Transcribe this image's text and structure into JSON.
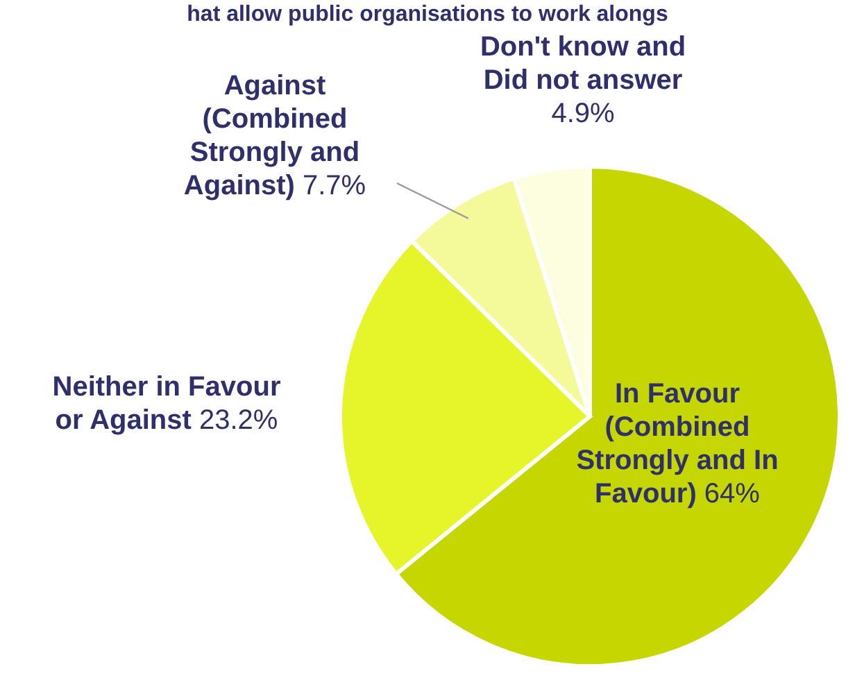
{
  "chart_data": {
    "type": "pie",
    "title": "hat allow public organisations to work alongs",
    "categories": [
      "In Favour (Combined Strongly and In Favour)",
      "Neither in Favour or Against",
      "Against (Combined Strongly and Against)",
      "Don't know and Did not answer"
    ],
    "values": [
      64,
      23.2,
      7.7,
      4.9
    ],
    "value_labels": [
      "64%",
      "23.2%",
      "7.7%",
      "4.9%"
    ],
    "colors": [
      "#c5d600",
      "#e6f52a",
      "#f4fa9a",
      "#fdfde0"
    ]
  }
}
